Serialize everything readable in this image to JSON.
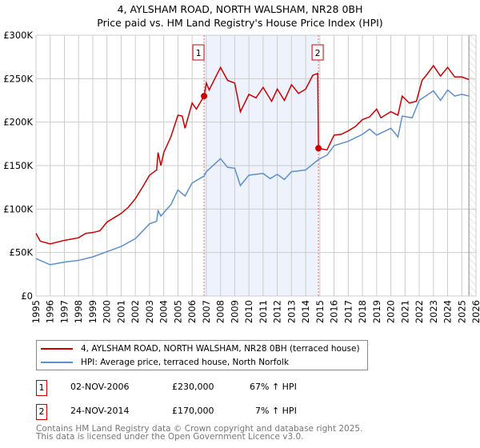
{
  "title": "4, AYLSHAM ROAD, NORTH WALSHAM, NR28 0BH",
  "subtitle": "Price paid vs. HM Land Registry's House Price Index (HPI)",
  "colors": {
    "property": "#cc0000",
    "hpi": "#5b8fd0",
    "shade": "#eef2fc"
  },
  "chart_data": {
    "type": "line",
    "xlim": [
      1995,
      2026
    ],
    "ylim": [
      0,
      300000
    ],
    "x_ticks": [
      "1995",
      "1996",
      "1997",
      "1998",
      "1999",
      "2000",
      "2001",
      "2002",
      "2003",
      "2004",
      "2005",
      "2006",
      "2007",
      "2008",
      "2009",
      "2010",
      "2011",
      "2012",
      "2013",
      "2014",
      "2015",
      "2016",
      "2017",
      "2018",
      "2019",
      "2020",
      "2021",
      "2022",
      "2023",
      "2024",
      "2025",
      "2026"
    ],
    "y_ticks": [
      {
        "v": 0,
        "label": "£0"
      },
      {
        "v": 50000,
        "label": "£50K"
      },
      {
        "v": 100000,
        "label": "£100K"
      },
      {
        "v": 150000,
        "label": "£150K"
      },
      {
        "v": 200000,
        "label": "£200K"
      },
      {
        "v": 250000,
        "label": "£250K"
      },
      {
        "v": 300000,
        "label": "£300K"
      }
    ],
    "shaded_range": [
      2006.84,
      2014.9
    ],
    "hatched_from": 2025.5,
    "series": [
      {
        "name": "4, AYLSHAM ROAD, NORTH WALSHAM, NR28 0BH (terraced house)",
        "color": "#cc0000",
        "points": [
          [
            1995,
            72000
          ],
          [
            1995.3,
            63000
          ],
          [
            1996,
            60000
          ],
          [
            1997,
            64000
          ],
          [
            1998,
            67000
          ],
          [
            1998.5,
            72000
          ],
          [
            1999,
            73000
          ],
          [
            1999.5,
            75000
          ],
          [
            2000,
            85000
          ],
          [
            2000.5,
            90000
          ],
          [
            2001,
            95000
          ],
          [
            2001.5,
            102000
          ],
          [
            2002,
            112000
          ],
          [
            2002.5,
            125000
          ],
          [
            2003,
            139000
          ],
          [
            2003.5,
            145000
          ],
          [
            2003.6,
            165000
          ],
          [
            2003.8,
            150000
          ],
          [
            2004,
            165000
          ],
          [
            2004.5,
            183000
          ],
          [
            2005,
            208000
          ],
          [
            2005.3,
            207000
          ],
          [
            2005.5,
            193000
          ],
          [
            2006,
            222000
          ],
          [
            2006.3,
            215000
          ],
          [
            2006.84,
            230000
          ],
          [
            2007,
            245000
          ],
          [
            2007.2,
            237000
          ],
          [
            2008,
            263000
          ],
          [
            2008.5,
            248000
          ],
          [
            2009,
            245000
          ],
          [
            2009.4,
            212000
          ],
          [
            2010,
            232000
          ],
          [
            2010.5,
            228000
          ],
          [
            2011,
            240000
          ],
          [
            2011.6,
            224000
          ],
          [
            2012,
            238000
          ],
          [
            2012.5,
            225000
          ],
          [
            2013,
            243000
          ],
          [
            2013.5,
            233000
          ],
          [
            2014,
            238000
          ],
          [
            2014.5,
            254000
          ],
          [
            2014.85,
            256000
          ],
          [
            2014.9,
            170000
          ],
          [
            2015.5,
            168000
          ],
          [
            2016,
            185000
          ],
          [
            2016.5,
            186000
          ],
          [
            2017,
            190000
          ],
          [
            2017.5,
            195000
          ],
          [
            2018,
            203000
          ],
          [
            2018.5,
            206000
          ],
          [
            2019,
            215000
          ],
          [
            2019.3,
            205000
          ],
          [
            2020,
            212000
          ],
          [
            2020.5,
            208000
          ],
          [
            2020.8,
            230000
          ],
          [
            2021.3,
            222000
          ],
          [
            2021.8,
            224000
          ],
          [
            2022.2,
            248000
          ],
          [
            2022.5,
            254000
          ],
          [
            2023,
            265000
          ],
          [
            2023.5,
            253000
          ],
          [
            2024,
            263000
          ],
          [
            2024.5,
            252000
          ],
          [
            2025,
            252000
          ],
          [
            2025.5,
            249000
          ]
        ]
      },
      {
        "name": "HPI: Average price, terraced house, North Norfolk",
        "color": "#5b8fd0",
        "points": [
          [
            1995,
            43000
          ],
          [
            1996,
            36000
          ],
          [
            1997,
            39000
          ],
          [
            1998,
            41000
          ],
          [
            1999,
            45000
          ],
          [
            2000,
            51000
          ],
          [
            2001,
            57000
          ],
          [
            2002,
            66000
          ],
          [
            2003,
            83000
          ],
          [
            2003.5,
            86000
          ],
          [
            2003.6,
            98000
          ],
          [
            2003.8,
            92000
          ],
          [
            2004.5,
            105000
          ],
          [
            2005,
            122000
          ],
          [
            2005.5,
            115000
          ],
          [
            2006,
            130000
          ],
          [
            2006.84,
            138000
          ],
          [
            2007,
            143000
          ],
          [
            2008,
            158000
          ],
          [
            2008.5,
            148000
          ],
          [
            2009,
            147000
          ],
          [
            2009.4,
            127000
          ],
          [
            2010,
            139000
          ],
          [
            2011,
            141000
          ],
          [
            2011.5,
            135000
          ],
          [
            2012,
            140000
          ],
          [
            2012.5,
            134000
          ],
          [
            2013,
            143000
          ],
          [
            2014,
            145000
          ],
          [
            2014.9,
            157000
          ],
          [
            2015.5,
            162000
          ],
          [
            2016,
            173000
          ],
          [
            2017,
            178000
          ],
          [
            2018,
            186000
          ],
          [
            2018.5,
            192000
          ],
          [
            2019,
            185000
          ],
          [
            2020,
            193000
          ],
          [
            2020.5,
            183000
          ],
          [
            2020.8,
            207000
          ],
          [
            2021.5,
            205000
          ],
          [
            2022,
            225000
          ],
          [
            2023,
            236000
          ],
          [
            2023.5,
            225000
          ],
          [
            2024,
            237000
          ],
          [
            2024.5,
            230000
          ],
          [
            2025,
            232000
          ],
          [
            2025.5,
            230000
          ]
        ]
      }
    ],
    "annotations": [
      {
        "label": "1",
        "x": 2006.84,
        "y": 230000
      },
      {
        "label": "2",
        "x": 2014.9,
        "y": 170000
      }
    ]
  },
  "legend": {
    "property": "4, AYLSHAM ROAD, NORTH WALSHAM, NR28 0BH (terraced house)",
    "hpi": "HPI: Average price, terraced house, North Norfolk"
  },
  "sales": [
    {
      "num": "1",
      "date": "02-NOV-2006",
      "price": "£230,000",
      "hpi": "67% ↑ HPI"
    },
    {
      "num": "2",
      "date": "24-NOV-2014",
      "price": "£170,000",
      "hpi": "7% ↑ HPI"
    }
  ],
  "footer": [
    "Contains HM Land Registry data © Crown copyright and database right 2025.",
    "This data is licensed under the Open Government Licence v3.0."
  ]
}
